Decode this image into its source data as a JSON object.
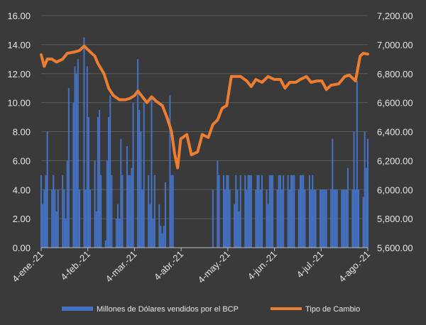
{
  "chart_data": {
    "type": "bar+line",
    "title": "",
    "legend_position": "bottom",
    "grid": true,
    "x_ticks": [
      "4-ene.-21",
      "4-feb.-21",
      "4-mar.-21",
      "4-abr.-21",
      "4-may.-21",
      "4-jun.-21",
      "4-jul.-21",
      "4-ago.-21"
    ],
    "x_range": [
      "2021-01-04",
      "2021-08-05"
    ],
    "y_left": {
      "range": [
        0,
        16
      ],
      "ticks": [
        "0.00",
        "2.00",
        "4.00",
        "6.00",
        "8.00",
        "10.00",
        "12.00",
        "14.00",
        "16.00"
      ]
    },
    "y_right": {
      "range": [
        5600,
        7200
      ],
      "ticks": [
        "5,600.00",
        "5,800.00",
        "6,000.00",
        "6,200.00",
        "6,400.00",
        "6,600.00",
        "6,800.00",
        "7,000.00",
        "7,200.00"
      ]
    },
    "series": [
      {
        "name": "Millones de Dólares vendidos por el BCP",
        "type": "bar",
        "axis": "left",
        "color": "#4472c4",
        "points": [
          [
            "2021-01-04",
            5
          ],
          [
            "2021-01-05",
            3
          ],
          [
            "2021-01-06",
            4
          ],
          [
            "2021-01-07",
            5
          ],
          [
            "2021-01-08",
            8
          ],
          [
            "2021-01-11",
            4
          ],
          [
            "2021-01-12",
            5
          ],
          [
            "2021-01-13",
            4
          ],
          [
            "2021-01-14",
            2.5
          ],
          [
            "2021-01-15",
            4
          ],
          [
            "2021-01-18",
            5
          ],
          [
            "2021-01-19",
            4
          ],
          [
            "2021-01-20",
            2
          ],
          [
            "2021-01-21",
            6
          ],
          [
            "2021-01-22",
            11
          ],
          [
            "2021-01-25",
            10
          ],
          [
            "2021-01-26",
            12.5
          ],
          [
            "2021-01-27",
            12
          ],
          [
            "2021-01-28",
            13
          ],
          [
            "2021-01-29",
            4
          ],
          [
            "2021-02-01",
            14.5
          ],
          [
            "2021-02-02",
            4
          ],
          [
            "2021-02-03",
            12.5
          ],
          [
            "2021-02-04",
            9
          ],
          [
            "2021-02-05",
            4
          ],
          [
            "2021-02-08",
            6
          ],
          [
            "2021-02-09",
            2.5
          ],
          [
            "2021-02-10",
            9
          ],
          [
            "2021-02-11",
            9.5
          ],
          [
            "2021-02-12",
            5
          ],
          [
            "2021-02-15",
            0.5
          ],
          [
            "2021-02-16",
            6
          ],
          [
            "2021-02-17",
            9
          ],
          [
            "2021-02-18",
            10.5
          ],
          [
            "2021-02-19",
            5
          ],
          [
            "2021-02-22",
            2
          ],
          [
            "2021-02-23",
            3
          ],
          [
            "2021-02-24",
            2
          ],
          [
            "2021-02-25",
            7.5
          ],
          [
            "2021-02-26",
            5
          ],
          [
            "2021-03-01",
            7
          ],
          [
            "2021-03-02",
            5
          ],
          [
            "2021-03-03",
            5
          ],
          [
            "2021-03-04",
            5.5
          ],
          [
            "2021-03-05",
            10
          ],
          [
            "2021-03-08",
            13
          ],
          [
            "2021-03-09",
            9.5
          ],
          [
            "2021-03-10",
            8
          ],
          [
            "2021-03-11",
            4
          ],
          [
            "2021-03-12",
            10
          ],
          [
            "2021-03-15",
            5
          ],
          [
            "2021-03-16",
            3
          ],
          [
            "2021-03-17",
            10.5
          ],
          [
            "2021-03-18",
            2
          ],
          [
            "2021-03-19",
            5
          ],
          [
            "2021-03-22",
            3
          ],
          [
            "2021-03-23",
            1.5
          ],
          [
            "2021-03-24",
            1
          ],
          [
            "2021-03-25",
            1.5
          ],
          [
            "2021-03-26",
            4.5
          ],
          [
            "2021-03-29",
            10.5
          ],
          [
            "2021-03-30",
            5
          ],
          [
            "2021-03-31",
            5
          ],
          [
            "2021-04-26",
            4
          ],
          [
            "2021-04-29",
            6
          ],
          [
            "2021-04-30",
            5
          ],
          [
            "2021-05-03",
            5
          ],
          [
            "2021-05-04",
            4
          ],
          [
            "2021-05-05",
            5
          ],
          [
            "2021-05-06",
            5
          ],
          [
            "2021-05-07",
            4
          ],
          [
            "2021-05-10",
            3
          ],
          [
            "2021-05-11",
            5
          ],
          [
            "2021-05-12",
            4
          ],
          [
            "2021-05-13",
            2.5
          ],
          [
            "2021-05-14",
            5
          ],
          [
            "2021-05-17",
            5
          ],
          [
            "2021-05-18",
            4
          ],
          [
            "2021-05-19",
            5
          ],
          [
            "2021-05-20",
            5
          ],
          [
            "2021-05-21",
            5
          ],
          [
            "2021-05-24",
            4
          ],
          [
            "2021-05-25",
            5
          ],
          [
            "2021-05-26",
            5
          ],
          [
            "2021-05-27",
            4
          ],
          [
            "2021-05-28",
            5
          ],
          [
            "2021-05-31",
            4
          ],
          [
            "2021-06-01",
            3
          ],
          [
            "2021-06-02",
            5
          ],
          [
            "2021-06-03",
            5
          ],
          [
            "2021-06-04",
            5
          ],
          [
            "2021-06-07",
            4
          ],
          [
            "2021-06-08",
            5
          ],
          [
            "2021-06-09",
            5
          ],
          [
            "2021-06-10",
            4
          ],
          [
            "2021-06-11",
            5
          ],
          [
            "2021-06-14",
            5
          ],
          [
            "2021-06-15",
            4
          ],
          [
            "2021-06-16",
            5
          ],
          [
            "2021-06-17",
            5
          ],
          [
            "2021-06-18",
            5
          ],
          [
            "2021-06-21",
            4
          ],
          [
            "2021-06-22",
            5
          ],
          [
            "2021-06-23",
            5
          ],
          [
            "2021-06-24",
            5
          ],
          [
            "2021-06-25",
            4
          ],
          [
            "2021-06-28",
            5
          ],
          [
            "2021-06-29",
            4
          ],
          [
            "2021-06-30",
            5
          ],
          [
            "2021-07-01",
            4
          ],
          [
            "2021-07-02",
            4
          ],
          [
            "2021-07-05",
            4
          ],
          [
            "2021-07-06",
            4
          ],
          [
            "2021-07-07",
            4
          ],
          [
            "2021-07-08",
            4
          ],
          [
            "2021-07-09",
            4
          ],
          [
            "2021-07-12",
            4
          ],
          [
            "2021-07-13",
            7.5
          ],
          [
            "2021-07-14",
            4
          ],
          [
            "2021-07-15",
            4
          ],
          [
            "2021-07-16",
            4
          ],
          [
            "2021-07-19",
            4
          ],
          [
            "2021-07-20",
            4
          ],
          [
            "2021-07-21",
            4
          ],
          [
            "2021-07-22",
            4
          ],
          [
            "2021-07-23",
            5.5
          ],
          [
            "2021-07-26",
            4
          ],
          [
            "2021-07-27",
            8
          ],
          [
            "2021-07-28",
            4
          ],
          [
            "2021-07-29",
            11.5
          ],
          [
            "2021-07-30",
            4
          ],
          [
            "2021-08-02",
            3.5
          ],
          [
            "2021-08-03",
            8
          ],
          [
            "2021-08-04",
            5.5
          ],
          [
            "2021-08-05",
            7.5
          ]
        ]
      },
      {
        "name": "Tipo de Cambio",
        "type": "line",
        "axis": "right",
        "color": "#ed7d31",
        "points": [
          [
            "2021-01-04",
            6930
          ],
          [
            "2021-01-06",
            6850
          ],
          [
            "2021-01-08",
            6900
          ],
          [
            "2021-01-11",
            6900
          ],
          [
            "2021-01-14",
            6880
          ],
          [
            "2021-01-18",
            6900
          ],
          [
            "2021-01-21",
            6940
          ],
          [
            "2021-01-26",
            6950
          ],
          [
            "2021-01-29",
            6960
          ],
          [
            "2021-02-01",
            6990
          ],
          [
            "2021-02-04",
            6960
          ],
          [
            "2021-02-08",
            6920
          ],
          [
            "2021-02-10",
            6870
          ],
          [
            "2021-02-14",
            6800
          ],
          [
            "2021-02-17",
            6700
          ],
          [
            "2021-02-20",
            6650
          ],
          [
            "2021-02-24",
            6620
          ],
          [
            "2021-02-28",
            6620
          ],
          [
            "2021-03-03",
            6630
          ],
          [
            "2021-03-06",
            6650
          ],
          [
            "2021-03-08",
            6680
          ],
          [
            "2021-03-11",
            6640
          ],
          [
            "2021-03-14",
            6600
          ],
          [
            "2021-03-17",
            6640
          ],
          [
            "2021-03-20",
            6610
          ],
          [
            "2021-03-24",
            6580
          ],
          [
            "2021-03-27",
            6500
          ],
          [
            "2021-03-30",
            6400
          ],
          [
            "2021-04-01",
            6250
          ],
          [
            "2021-04-03",
            6150
          ],
          [
            "2021-04-05",
            6350
          ],
          [
            "2021-04-09",
            6380
          ],
          [
            "2021-04-12",
            6240
          ],
          [
            "2021-04-16",
            6260
          ],
          [
            "2021-04-19",
            6380
          ],
          [
            "2021-04-23",
            6360
          ],
          [
            "2021-04-26",
            6450
          ],
          [
            "2021-04-29",
            6480
          ],
          [
            "2021-05-02",
            6560
          ],
          [
            "2021-05-05",
            6580
          ],
          [
            "2021-05-08",
            6780
          ],
          [
            "2021-05-14",
            6780
          ],
          [
            "2021-05-18",
            6750
          ],
          [
            "2021-05-21",
            6710
          ],
          [
            "2021-05-24",
            6760
          ],
          [
            "2021-05-28",
            6740
          ],
          [
            "2021-06-01",
            6780
          ],
          [
            "2021-06-05",
            6760
          ],
          [
            "2021-06-09",
            6760
          ],
          [
            "2021-06-12",
            6700
          ],
          [
            "2021-06-15",
            6740
          ],
          [
            "2021-06-19",
            6740
          ],
          [
            "2021-06-22",
            6760
          ],
          [
            "2021-06-26",
            6780
          ],
          [
            "2021-06-29",
            6740
          ],
          [
            "2021-07-03",
            6750
          ],
          [
            "2021-07-06",
            6750
          ],
          [
            "2021-07-09",
            6690
          ],
          [
            "2021-07-12",
            6720
          ],
          [
            "2021-07-17",
            6730
          ],
          [
            "2021-07-21",
            6780
          ],
          [
            "2021-07-24",
            6790
          ],
          [
            "2021-07-28",
            6750
          ],
          [
            "2021-07-31",
            6920
          ],
          [
            "2021-08-02",
            6940
          ],
          [
            "2021-08-05",
            6935
          ]
        ]
      }
    ]
  }
}
